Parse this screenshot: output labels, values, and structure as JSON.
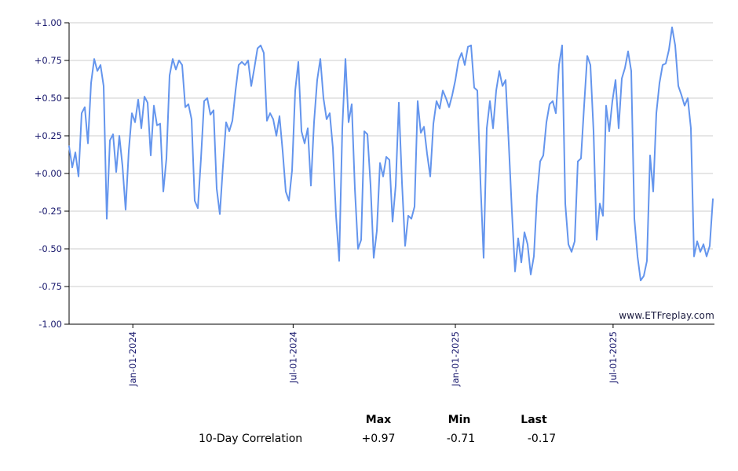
{
  "watermark": "www.ETFreplay.com",
  "stats": {
    "row_label": "10-Day Correlation",
    "columns": [
      {
        "label": "Max",
        "value": "+0.97"
      },
      {
        "label": "Min",
        "value": "-0.71"
      },
      {
        "label": "Last",
        "value": "-0.17"
      }
    ]
  },
  "chart_data": {
    "type": "line",
    "title": "",
    "series_name": "10-Day Correlation",
    "ylim": [
      -1,
      1
    ],
    "grid": true,
    "legend": "none",
    "line_color": "#6495ED",
    "grid_color": "#CCCCCC",
    "axis_color": "#000000",
    "label_color": "#1A1A6E",
    "y_ticks": [
      "+1.00",
      "+0.75",
      "+0.50",
      "+0.25",
      "+0.00",
      "-0.25",
      "-0.50",
      "-0.75",
      "-1.00"
    ],
    "x_ticks": [
      {
        "label": "Jan-01-2024",
        "pos": 0.099
      },
      {
        "label": "Jul-01-2024",
        "pos": 0.348
      },
      {
        "label": "Jan-01-2025",
        "pos": 0.6
      },
      {
        "label": "Jul-01-2025",
        "pos": 0.845
      }
    ],
    "max": 0.97,
    "min": -0.71,
    "last": -0.17,
    "values": [
      0.18,
      0.04,
      0.14,
      -0.02,
      0.4,
      0.44,
      0.2,
      0.6,
      0.76,
      0.68,
      0.72,
      0.58,
      -0.3,
      0.22,
      0.26,
      0.01,
      0.25,
      0.05,
      -0.24,
      0.15,
      0.4,
      0.34,
      0.49,
      0.3,
      0.51,
      0.47,
      0.12,
      0.45,
      0.32,
      0.33,
      -0.12,
      0.1,
      0.65,
      0.76,
      0.69,
      0.75,
      0.72,
      0.44,
      0.46,
      0.36,
      -0.18,
      -0.23,
      0.1,
      0.48,
      0.5,
      0.39,
      0.42,
      -0.1,
      -0.27,
      0.05,
      0.34,
      0.28,
      0.35,
      0.55,
      0.72,
      0.74,
      0.72,
      0.75,
      0.58,
      0.7,
      0.83,
      0.85,
      0.8,
      0.35,
      0.4,
      0.36,
      0.25,
      0.38,
      0.15,
      -0.12,
      -0.18,
      0.02,
      0.55,
      0.74,
      0.28,
      0.2,
      0.3,
      -0.08,
      0.34,
      0.62,
      0.76,
      0.5,
      0.36,
      0.4,
      0.17,
      -0.28,
      -0.58,
      0.3,
      0.76,
      0.34,
      0.46,
      -0.1,
      -0.5,
      -0.44,
      0.28,
      0.26,
      -0.08,
      -0.56,
      -0.38,
      0.07,
      -0.02,
      0.11,
      0.09,
      -0.32,
      -0.08,
      0.47,
      -0.06,
      -0.48,
      -0.28,
      -0.3,
      -0.22,
      0.48,
      0.27,
      0.31,
      0.13,
      -0.02,
      0.33,
      0.48,
      0.43,
      0.55,
      0.5,
      0.44,
      0.52,
      0.62,
      0.75,
      0.8,
      0.72,
      0.84,
      0.85,
      0.57,
      0.55,
      -0.06,
      -0.56,
      0.3,
      0.48,
      0.3,
      0.55,
      0.68,
      0.58,
      0.62,
      0.2,
      -0.25,
      -0.65,
      -0.43,
      -0.59,
      -0.39,
      -0.47,
      -0.67,
      -0.55,
      -0.15,
      0.08,
      0.12,
      0.34,
      0.46,
      0.48,
      0.4,
      0.72,
      0.85,
      -0.2,
      -0.47,
      -0.52,
      -0.45,
      0.08,
      0.1,
      0.45,
      0.78,
      0.72,
      0.28,
      -0.44,
      -0.2,
      -0.28,
      0.45,
      0.28,
      0.48,
      0.62,
      0.3,
      0.63,
      0.7,
      0.81,
      0.68,
      -0.3,
      -0.55,
      -0.71,
      -0.68,
      -0.58,
      0.12,
      -0.12,
      0.4,
      0.6,
      0.72,
      0.73,
      0.82,
      0.97,
      0.85,
      0.58,
      0.52,
      0.45,
      0.5,
      0.3,
      -0.55,
      -0.45,
      -0.52,
      -0.47,
      -0.55,
      -0.48,
      -0.17
    ]
  }
}
